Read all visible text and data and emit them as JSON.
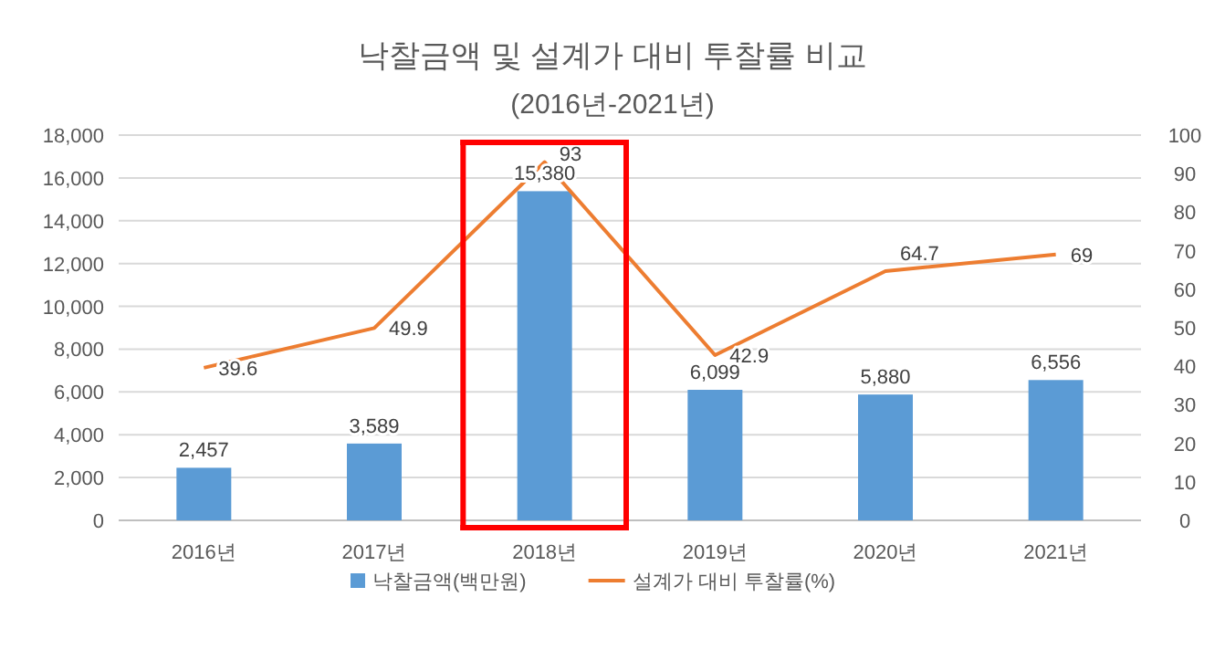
{
  "chart_data": {
    "type": "bar",
    "title": "낙찰금액 및 설계가 대비 투찰률 비교",
    "subtitle": "(2016년-2021년)",
    "categories": [
      "2016년",
      "2017년",
      "2018년",
      "2019년",
      "2020년",
      "2021년"
    ],
    "series": [
      {
        "name": "낙찰금액(백만원)",
        "color": "#5b9bd5",
        "values": [
          2457,
          3589,
          15380,
          6099,
          5880,
          6556
        ],
        "value_labels": [
          "2,457",
          "3,589",
          "15,380",
          "6,099",
          "5,880",
          "6,556"
        ]
      },
      {
        "name": "설계가 대비 투찰률(%)",
        "type": "line",
        "axis": "y2",
        "color": "#ed7d31",
        "values": [
          39.6,
          49.9,
          93,
          42.9,
          64.7,
          69
        ]
      }
    ],
    "ylim": [
      0,
      18000
    ],
    "yticks": [
      {
        "value": 0,
        "label": "0"
      },
      {
        "value": 2000,
        "label": "2,000"
      },
      {
        "value": 4000,
        "label": "4,000"
      },
      {
        "value": 6000,
        "label": "6,000"
      },
      {
        "value": 8000,
        "label": "8,000"
      },
      {
        "value": 10000,
        "label": "10,000"
      },
      {
        "value": 12000,
        "label": "12,000"
      },
      {
        "value": 14000,
        "label": "14,000"
      },
      {
        "value": 16000,
        "label": "16,000"
      },
      {
        "value": 18000,
        "label": "18,000"
      }
    ],
    "y2lim": [
      0,
      100
    ],
    "y2ticks": [
      0,
      10,
      20,
      30,
      40,
      50,
      60,
      70,
      80,
      90,
      100
    ],
    "grid": "y",
    "legend": "bottom",
    "data_labels": true
  }
}
